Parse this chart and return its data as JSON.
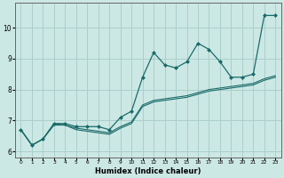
{
  "xlabel": "Humidex (Indice chaleur)",
  "ylabel": "",
  "bg_color": "#cce8e4",
  "grid_color": "#aacfcb",
  "line_color": "#1a6b6b",
  "xlim": [
    -0.5,
    23.5
  ],
  "ylim": [
    5.8,
    10.8
  ],
  "xticks": [
    0,
    1,
    2,
    3,
    4,
    5,
    6,
    7,
    8,
    9,
    10,
    11,
    12,
    13,
    14,
    15,
    16,
    17,
    18,
    19,
    20,
    21,
    22,
    23
  ],
  "yticks": [
    6,
    7,
    8,
    9,
    10
  ],
  "series": [
    {
      "x": [
        0,
        1,
        2,
        3,
        4,
        5,
        6,
        7,
        8,
        9,
        10,
        11,
        12,
        13,
        14,
        15,
        16,
        17,
        18,
        19,
        20,
        21,
        22,
        23
      ],
      "y": [
        6.7,
        6.2,
        6.4,
        6.9,
        6.9,
        6.8,
        6.8,
        6.8,
        6.7,
        7.1,
        7.3,
        8.4,
        9.2,
        8.8,
        8.7,
        8.9,
        9.5,
        9.3,
        8.9,
        8.4,
        8.4,
        8.5,
        10.4,
        10.4
      ],
      "marker": "D",
      "ms": 2.0
    },
    {
      "x": [
        0,
        1,
        2,
        3,
        4,
        5,
        6,
        7,
        8,
        9,
        10,
        11,
        12,
        13,
        14,
        15,
        16,
        17,
        18,
        19,
        20,
        21,
        22,
        23
      ],
      "y": [
        6.7,
        6.2,
        6.4,
        6.85,
        6.85,
        6.75,
        6.7,
        6.65,
        6.6,
        6.8,
        6.95,
        7.5,
        7.65,
        7.7,
        7.75,
        7.8,
        7.9,
        8.0,
        8.05,
        8.1,
        8.15,
        8.2,
        8.35,
        8.45
      ],
      "marker": null,
      "ms": 0
    },
    {
      "x": [
        0,
        1,
        2,
        3,
        4,
        5,
        6,
        7,
        8,
        9,
        10,
        11,
        12,
        13,
        14,
        15,
        16,
        17,
        18,
        19,
        20,
        21,
        22,
        23
      ],
      "y": [
        6.7,
        6.2,
        6.4,
        6.9,
        6.85,
        6.7,
        6.65,
        6.6,
        6.55,
        6.75,
        6.9,
        7.45,
        7.6,
        7.65,
        7.7,
        7.75,
        7.85,
        7.95,
        8.0,
        8.05,
        8.1,
        8.15,
        8.3,
        8.4
      ],
      "marker": null,
      "ms": 0
    }
  ]
}
